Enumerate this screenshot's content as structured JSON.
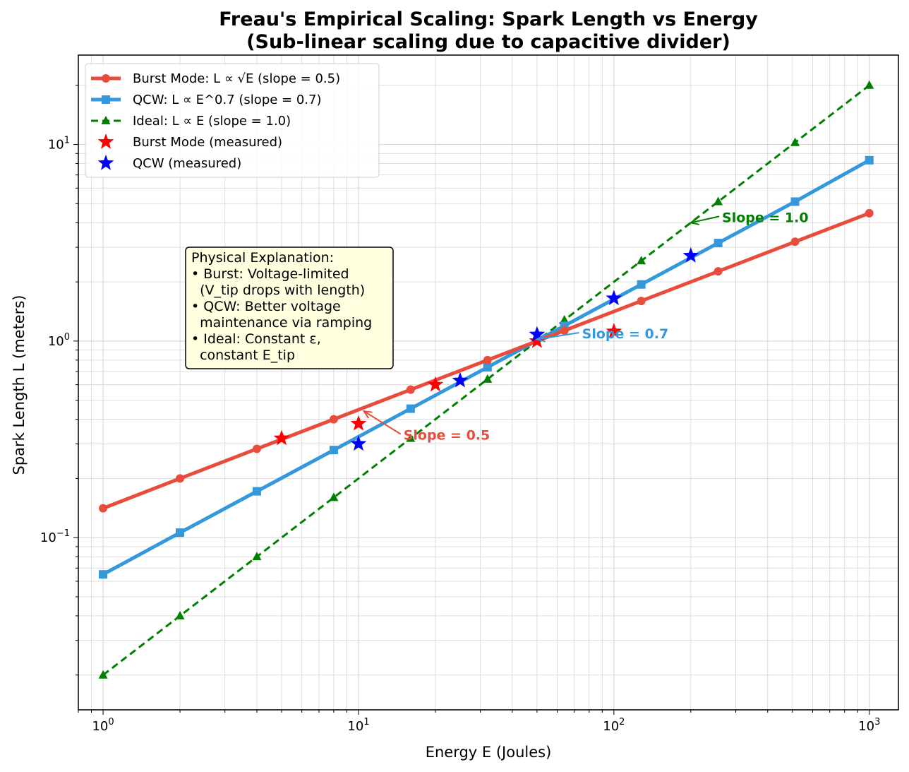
{
  "chart_data": {
    "type": "line",
    "title": "Freau's Empirical Scaling: Spark Length vs Energy",
    "subtitle": "(Sub-linear scaling due to capacitive divider)",
    "xlabel": "Energy E (Joules)",
    "ylabel": "Spark Length L (meters)",
    "xscale": "log",
    "yscale": "log",
    "xlim": [
      0.8,
      1300
    ],
    "ylim": [
      0.0133,
      28.5
    ],
    "grid": true,
    "x_ticks": [
      {
        "base": "10",
        "exp": "0",
        "value": 1
      },
      {
        "base": "10",
        "exp": "1",
        "value": 10
      },
      {
        "base": "10",
        "exp": "2",
        "value": 100
      },
      {
        "base": "10",
        "exp": "3",
        "value": 1000
      }
    ],
    "y_ticks": [
      {
        "base": "10",
        "exp": "−1",
        "value": 0.1
      },
      {
        "base": "10",
        "exp": "0",
        "value": 1
      },
      {
        "base": "10",
        "exp": "1",
        "value": 10
      }
    ],
    "series": [
      {
        "name": "Burst Mode: L ∝ √E (slope = 0.5)",
        "color": "#e74c3c",
        "style": "solid",
        "marker": "circle",
        "x": [
          1,
          2,
          4,
          8,
          16,
          32,
          64,
          128,
          256,
          512,
          1000
        ],
        "y": [
          0.141,
          0.2,
          0.283,
          0.4,
          0.566,
          0.8,
          1.131,
          1.6,
          2.263,
          3.2,
          4.472
        ]
      },
      {
        "name": "QCW: L ∝ E^0.7 (slope = 0.7)",
        "color": "#3498db",
        "style": "solid",
        "marker": "square",
        "x": [
          1,
          2,
          4,
          8,
          16,
          32,
          64,
          128,
          256,
          512,
          1000
        ],
        "y": [
          0.065,
          0.106,
          0.172,
          0.279,
          0.453,
          0.736,
          1.195,
          1.941,
          3.153,
          5.121,
          8.32
        ]
      },
      {
        "name": "Ideal: L ∝ E (slope = 1.0)",
        "color": "#008000",
        "style": "dashed",
        "marker": "triangle",
        "x": [
          1,
          2,
          4,
          8,
          16,
          32,
          64,
          128,
          256,
          512,
          1000
        ],
        "y": [
          0.02,
          0.04,
          0.08,
          0.16,
          0.32,
          0.64,
          1.28,
          2.56,
          5.12,
          10.24,
          20
        ]
      },
      {
        "name": "Burst Mode (measured)",
        "color": "#ff0000",
        "style": "none",
        "marker": "star",
        "x": [
          5,
          10,
          20,
          50,
          100
        ],
        "y": [
          0.32,
          0.38,
          0.6,
          1.0,
          1.12
        ]
      },
      {
        "name": "QCW (measured)",
        "color": "#0000ff",
        "style": "none",
        "marker": "star",
        "x": [
          10,
          25,
          50,
          100,
          200
        ],
        "y": [
          0.3,
          0.63,
          1.08,
          1.65,
          2.72
        ]
      }
    ],
    "annotations": [
      {
        "text": "Slope = 0.5",
        "color": "#e74c3c",
        "text_x": 15,
        "text_y": 0.32,
        "arrow_x": 10.5,
        "arrow_y": 0.44
      },
      {
        "text": "Slope = 0.7",
        "color": "#3498db",
        "text_x": 75,
        "text_y": 1.05,
        "arrow_x": 50,
        "arrow_y": 1.02
      },
      {
        "text": "Slope = 1.0",
        "color": "#008000",
        "text_x": 265,
        "text_y": 4.1,
        "arrow_x": 200,
        "arrow_y": 4.0
      }
    ],
    "explanation_box": {
      "lines": [
        "Physical Explanation:",
        "• Burst: Voltage-limited",
        "  (V_tip drops with length)",
        "• QCW: Better voltage",
        "  maintenance via ramping",
        "• Ideal: Constant ε,",
        "  constant E_tip"
      ],
      "background": "#ffffe0"
    },
    "legend_position": "upper-left"
  }
}
